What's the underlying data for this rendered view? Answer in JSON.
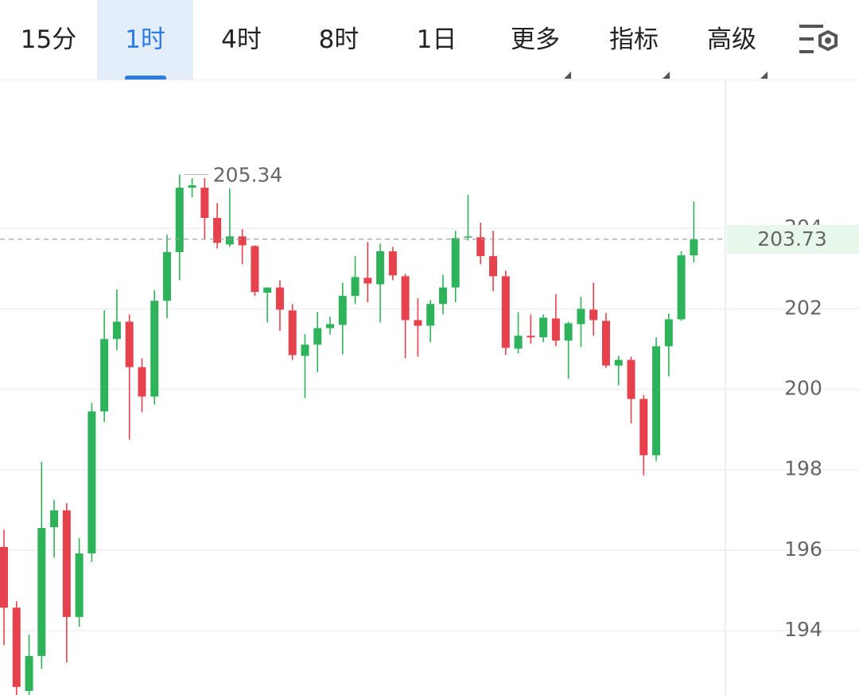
{
  "tabs": [
    {
      "label": "15分"
    },
    {
      "label": "1时",
      "active": true
    },
    {
      "label": "4时"
    },
    {
      "label": "8时"
    },
    {
      "label": "1日"
    },
    {
      "label": "更多",
      "menu": true
    },
    {
      "label": "指标",
      "menu": true
    },
    {
      "label": "高级",
      "menu": true
    }
  ],
  "chart_data": {
    "type": "candlestick",
    "up_color": "#2fb35a",
    "down_color": "#e5424d",
    "grid": true,
    "ylim": [
      192.4,
      207.7
    ],
    "yticks": [
      194,
      196,
      198,
      200,
      202,
      204
    ],
    "open": [
      196.08,
      194.57,
      192.5,
      193.37,
      196.57,
      196.99,
      194.34,
      195.92,
      199.45,
      201.25,
      201.68,
      200.55,
      199.82,
      202.2,
      203.41,
      205.01,
      205.01,
      204.26,
      203.6,
      203.8,
      203.56,
      202.4,
      202.53,
      201.96,
      200.83,
      201.11,
      201.52,
      201.6,
      202.32,
      202.77,
      202.61,
      203.43,
      202.81,
      201.72,
      201.58,
      202.12,
      202.53,
      203.78,
      203.78,
      203.31,
      202.81,
      201.01,
      201.33,
      201.29,
      201.76,
      201.21,
      201.62,
      201.98,
      201.7,
      200.59,
      200.73,
      199.76,
      198.36,
      201.07,
      201.74,
      203.33
    ],
    "high": [
      196.51,
      194.73,
      193.9,
      198.2,
      197.25,
      197.17,
      196.3,
      199.66,
      201.96,
      202.48,
      201.86,
      200.77,
      202.46,
      203.84,
      205.34,
      205.25,
      205.25,
      204.63,
      204.99,
      203.98,
      203.58,
      202.53,
      202.71,
      202.12,
      201.37,
      201.92,
      201.8,
      202.65,
      203.31,
      203.66,
      203.62,
      203.54,
      202.87,
      202.26,
      202.22,
      202.85,
      203.94,
      204.83,
      204.14,
      203.94,
      202.95,
      201.92,
      201.86,
      201.86,
      202.36,
      201.68,
      202.3,
      202.65,
      201.9,
      200.83,
      200.81,
      199.86,
      201.29,
      201.88,
      203.43,
      204.67
    ],
    "low": [
      193.64,
      192.4,
      192.4,
      193.05,
      195.82,
      193.21,
      194.1,
      195.7,
      199.19,
      200.97,
      198.75,
      199.43,
      199.62,
      201.76,
      202.71,
      204.77,
      203.74,
      203.5,
      203.54,
      203.11,
      202.32,
      201.66,
      201.45,
      200.73,
      199.78,
      200.42,
      201.36,
      200.87,
      202.12,
      202.16,
      201.66,
      202.71,
      200.77,
      200.81,
      201.17,
      201.86,
      202.16,
      203.7,
      203.11,
      202.44,
      200.85,
      200.89,
      201.13,
      201.17,
      201.07,
      200.26,
      201.05,
      201.33,
      200.53,
      200.1,
      199.15,
      197.86,
      198.22,
      200.32,
      201.7,
      203.15
    ],
    "close": [
      194.57,
      192.6,
      193.37,
      196.55,
      196.99,
      194.34,
      195.92,
      199.45,
      201.25,
      201.68,
      200.55,
      199.82,
      202.2,
      203.41,
      205.01,
      205.07,
      204.26,
      203.64,
      203.8,
      203.58,
      202.42,
      202.53,
      201.98,
      200.85,
      201.11,
      201.52,
      201.62,
      202.32,
      202.79,
      202.63,
      203.43,
      202.83,
      201.72,
      201.58,
      202.12,
      202.53,
      203.76,
      203.8,
      203.31,
      202.81,
      201.03,
      201.33,
      201.29,
      201.78,
      201.21,
      201.64,
      202.0,
      201.72,
      200.59,
      200.73,
      199.76,
      198.36,
      201.07,
      201.74,
      203.33,
      203.73
    ]
  }
}
